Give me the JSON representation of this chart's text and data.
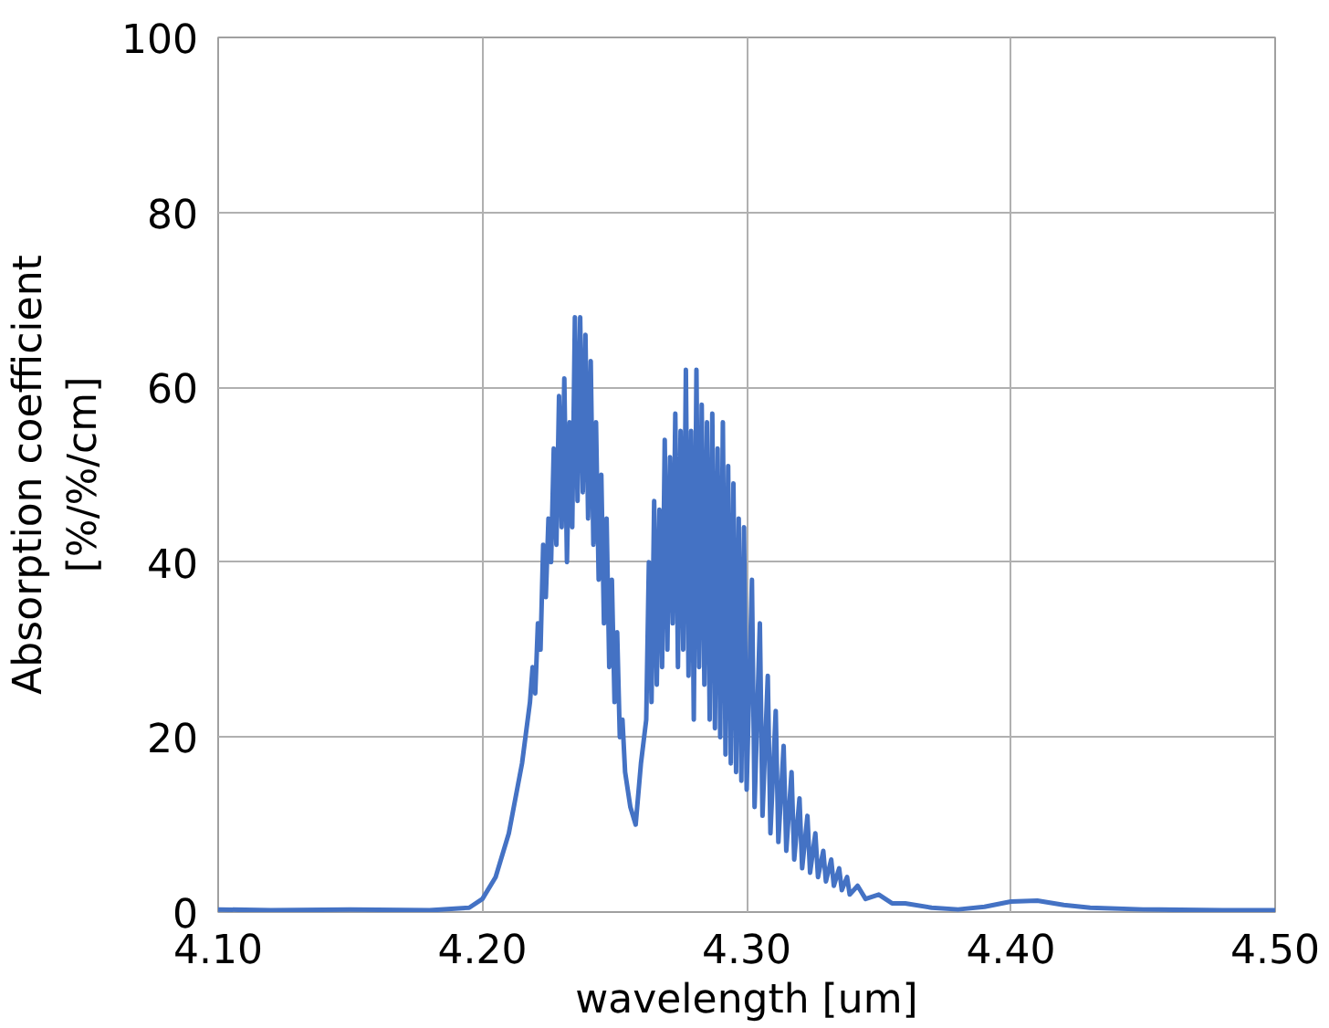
{
  "chart_data": {
    "type": "line",
    "xlabel": "wavelength [um]",
    "ylabel": "Absorption coefficient\n[%/%/cm]",
    "x": [
      4.1,
      4.12,
      4.15,
      4.18,
      4.195,
      4.2,
      4.205,
      4.21,
      4.215,
      4.218,
      4.219,
      4.22,
      4.221,
      4.222,
      4.223,
      4.224,
      4.225,
      4.226,
      4.227,
      4.228,
      4.229,
      4.23,
      4.231,
      4.232,
      4.233,
      4.234,
      4.235,
      4.236,
      4.237,
      4.238,
      4.239,
      4.24,
      4.241,
      4.242,
      4.243,
      4.244,
      4.245,
      4.246,
      4.247,
      4.248,
      4.249,
      4.25,
      4.251,
      4.252,
      4.253,
      4.254,
      4.256,
      4.258,
      4.26,
      4.262,
      4.263,
      4.264,
      4.265,
      4.266,
      4.267,
      4.268,
      4.269,
      4.27,
      4.271,
      4.272,
      4.273,
      4.274,
      4.275,
      4.276,
      4.277,
      4.278,
      4.279,
      4.28,
      4.281,
      4.282,
      4.283,
      4.284,
      4.285,
      4.286,
      4.287,
      4.288,
      4.289,
      4.29,
      4.291,
      4.292,
      4.293,
      4.294,
      4.295,
      4.296,
      4.297,
      4.298,
      4.299,
      4.3,
      4.302,
      4.303,
      4.305,
      4.306,
      4.308,
      4.309,
      4.311,
      4.312,
      4.314,
      4.315,
      4.317,
      4.318,
      4.32,
      4.321,
      4.323,
      4.324,
      4.326,
      4.327,
      4.329,
      4.33,
      4.332,
      4.333,
      4.335,
      4.336,
      4.338,
      4.339,
      4.342,
      4.345,
      4.35,
      4.355,
      4.36,
      4.37,
      4.38,
      4.39,
      4.4,
      4.41,
      4.42,
      4.43,
      4.45,
      4.48,
      4.5
    ],
    "series": [
      {
        "color": "#4472c4",
        "values": [
          0.3,
          0.2,
          0.3,
          0.2,
          0.5,
          1.5,
          4,
          9,
          17,
          24,
          28,
          25,
          33,
          30,
          42,
          36,
          45,
          40,
          53,
          42,
          59,
          44,
          61,
          40,
          56,
          44,
          68,
          47,
          68,
          48,
          66,
          45,
          63,
          42,
          56,
          38,
          50,
          33,
          45,
          28,
          38,
          24,
          32,
          20,
          22,
          16,
          12,
          10,
          17,
          22,
          40,
          24,
          47,
          26,
          46,
          28,
          54,
          30,
          52,
          33,
          57,
          28,
          55,
          30,
          62,
          27,
          55,
          22,
          62,
          28,
          58,
          26,
          56,
          22,
          57,
          21,
          53,
          20,
          56,
          18,
          51,
          17,
          49,
          16,
          45,
          15,
          44,
          14,
          38,
          12,
          33,
          11,
          27,
          9,
          23,
          8,
          19,
          7,
          16,
          6,
          13,
          5,
          11,
          4.5,
          9,
          4,
          7,
          3.5,
          6,
          3,
          5,
          2.5,
          4,
          2,
          3,
          1.5,
          2,
          1,
          1,
          0.5,
          0.3,
          0.6,
          1.2,
          1.3,
          0.8,
          0.5,
          0.3,
          0.2,
          0.2
        ]
      }
    ],
    "xlim": [
      4.1,
      4.5
    ],
    "xticks": [
      {
        "value": 4.1,
        "label": "4.10"
      },
      {
        "value": 4.2,
        "label": "4.20"
      },
      {
        "value": 4.3,
        "label": "4.30"
      },
      {
        "value": 4.4,
        "label": "4.40"
      },
      {
        "value": 4.5,
        "label": "4.50"
      }
    ],
    "ylim": [
      0,
      100
    ],
    "yticks": [
      0,
      20,
      40,
      60,
      80,
      100
    ],
    "grid": true
  }
}
